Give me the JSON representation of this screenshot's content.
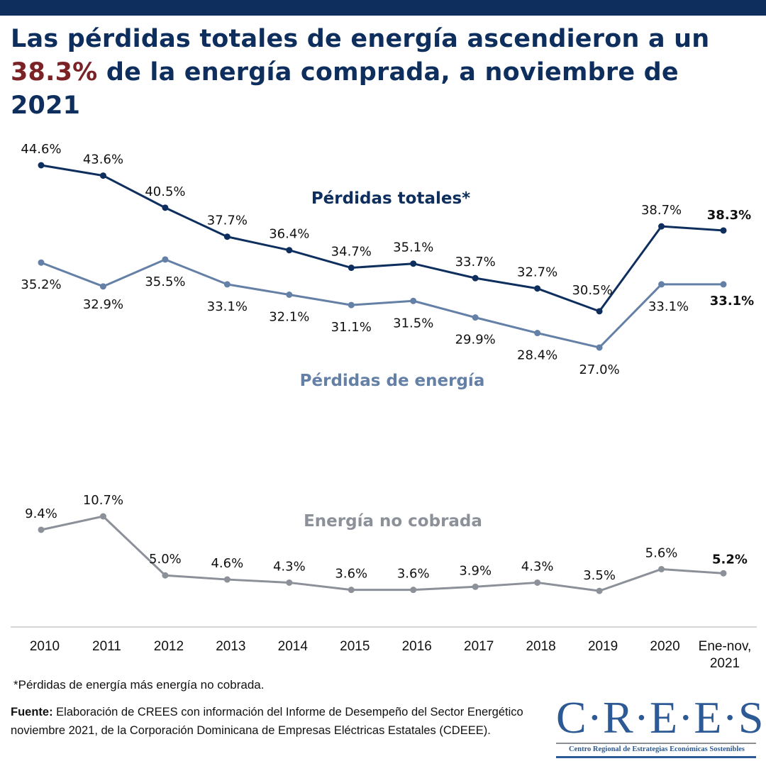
{
  "header": {
    "title_part1": "Las pérdidas totales de energía ascendieron a un ",
    "title_highlight": "38.3%",
    "title_part2": " de la energía comprada, a noviembre de 2021",
    "colors": {
      "bar": "#0e2f5e",
      "title": "#0e2f5e",
      "highlight": "#7b2226"
    }
  },
  "chart_data": {
    "type": "line",
    "title": "Las pérdidas totales de energía ascendieron a un 38.3% de la energía comprada, a noviembre de 2021",
    "xlabel": "",
    "ylabel": "",
    "categories": [
      "2010",
      "2011",
      "2012",
      "2013",
      "2014",
      "2015",
      "2016",
      "2017",
      "2018",
      "2019",
      "2020",
      "Ene-nov, 2021"
    ],
    "grid": false,
    "series": [
      {
        "name": "Pérdidas totales*",
        "color": "#0e2f5e",
        "values": [
          44.6,
          43.6,
          40.5,
          37.7,
          36.4,
          34.7,
          35.1,
          33.7,
          32.7,
          30.5,
          38.7,
          38.3
        ],
        "labels": [
          "44.6%",
          "43.6%",
          "40.5%",
          "37.7%",
          "36.4%",
          "34.7%",
          "35.1%",
          "33.7%",
          "32.7%",
          "30.5%",
          "38.7%",
          "38.3%"
        ],
        "label_position": "above"
      },
      {
        "name": "Pérdidas de energía",
        "color": "#6580a6",
        "values": [
          35.2,
          32.9,
          35.5,
          33.1,
          32.1,
          31.1,
          31.5,
          29.9,
          28.4,
          27.0,
          33.1,
          33.1
        ],
        "labels": [
          "35.2%",
          "32.9%",
          "35.5%",
          "33.1%",
          "32.1%",
          "31.1%",
          "31.5%",
          "29.9%",
          "28.4%",
          "27.0%",
          "33.1%",
          "33.1%"
        ],
        "label_position": "below"
      },
      {
        "name": "Energía no cobrada",
        "color": "#8c9199",
        "values": [
          9.4,
          10.7,
          5.0,
          4.6,
          4.3,
          3.6,
          3.6,
          3.9,
          4.3,
          3.5,
          5.6,
          5.2
        ],
        "labels": [
          "9.4%",
          "10.7%",
          "5.0%",
          "4.6%",
          "4.3%",
          "3.6%",
          "3.6%",
          "3.9%",
          "4.3%",
          "3.5%",
          "5.6%",
          "5.2%"
        ],
        "label_position": "above"
      }
    ],
    "last_label_bold": true,
    "axis_color": "#c8c8c8"
  },
  "footer": {
    "footnote": "*Pérdidas de energía más energía no cobrada.",
    "source_label": "Fuente:",
    "source_text": " Elaboración de CREES con información del Informe de Desempeño del Sector Energético noviembre 2021, de la Corporación Dominicana de Empresas Eléctricas Estatales (CDEEE)."
  },
  "logo": {
    "main": "C·R·E·E·S",
    "subtitle": "Centro Regional de Estrategias Económicas Sostenibles"
  }
}
